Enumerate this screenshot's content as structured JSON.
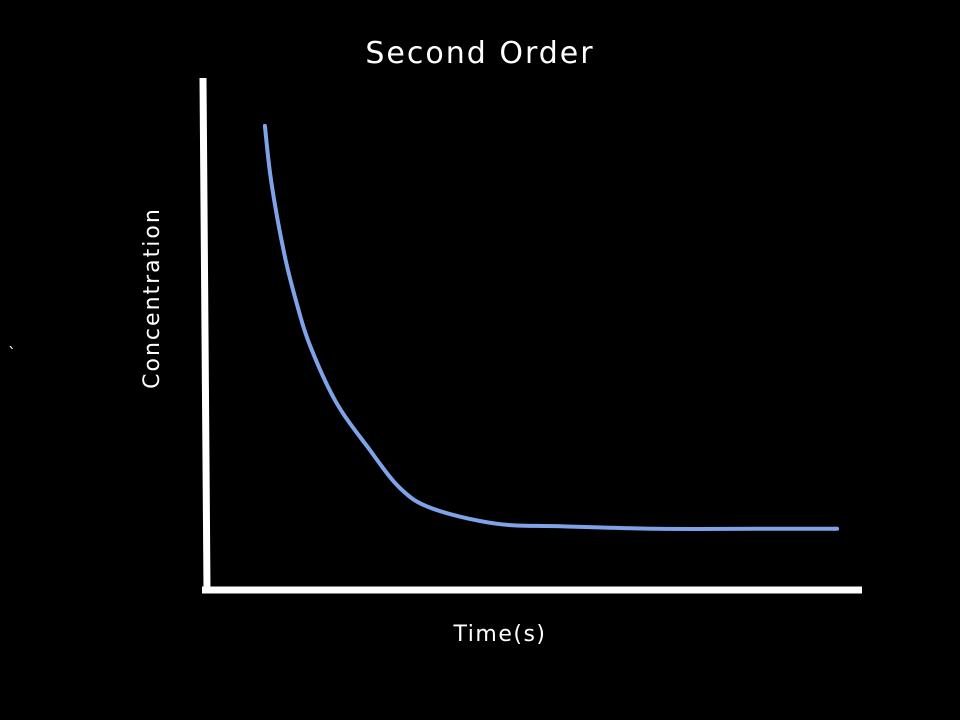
{
  "slide": {
    "stray_mark": "`"
  },
  "chart_data": {
    "type": "line",
    "title": "Second Order",
    "xlabel": "Time(s)",
    "ylabel": "Concentration",
    "grid": false,
    "legend": "none",
    "axis_ticks": false,
    "line_color": "#7fa3e8",
    "axis_color": "#ffffff",
    "background_color": "#000000",
    "arrowheads": "both-ends",
    "series": [
      {
        "x": [
          0.09,
          0.1,
          0.12,
          0.14,
          0.16,
          0.2,
          0.25,
          0.3,
          0.35,
          0.45,
          0.55,
          0.7,
          0.85,
          0.98
        ],
        "y": [
          0.91,
          0.8,
          0.66,
          0.56,
          0.48,
          0.37,
          0.28,
          0.2,
          0.16,
          0.13,
          0.125,
          0.12,
          0.12,
          0.12
        ]
      }
    ]
  }
}
